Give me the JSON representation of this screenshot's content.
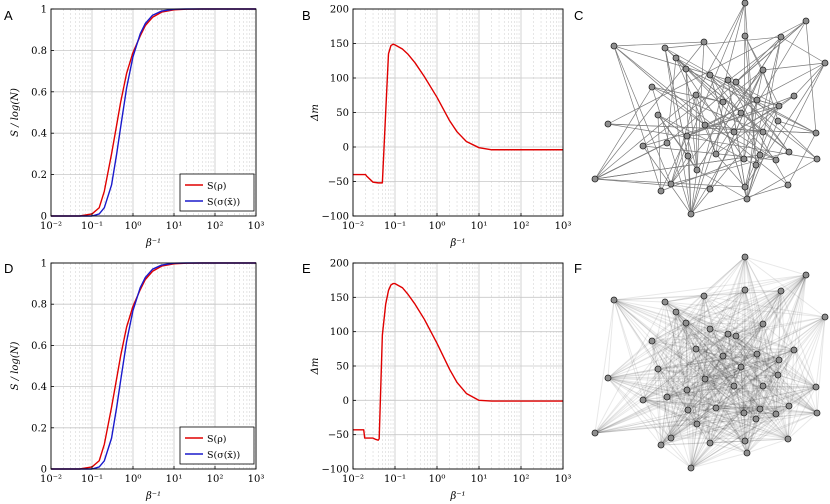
{
  "colors": {
    "red": "#e00000",
    "blue": "#1a1acc",
    "edge_sparse": "#7a7a7a",
    "edge_dense": "#000000"
  },
  "panels": {
    "a": "A",
    "b": "B",
    "c": "C",
    "d": "D",
    "e": "E",
    "f": "F"
  },
  "chart_data": [
    {
      "id": "A",
      "type": "line",
      "xscale": "log",
      "xlim": [
        0.01,
        1000
      ],
      "ylim": [
        0,
        1
      ],
      "xlabel": "β⁻¹",
      "ylabel": "S / log(N)",
      "xticks": [
        "10⁻²",
        "10⁻¹",
        "10⁰",
        "10¹",
        "10²",
        "10³"
      ],
      "yticks": [
        "0",
        "0.2",
        "0.4",
        "0.6",
        "0.8",
        "1"
      ],
      "legend_position": "bottom-right",
      "series": [
        {
          "name": "S(ρ)",
          "color": "red",
          "x": [
            0.01,
            0.05,
            0.1,
            0.15,
            0.2,
            0.3,
            0.4,
            0.5,
            0.7,
            1,
            1.5,
            2,
            3,
            5,
            10,
            20,
            50,
            100,
            1000
          ],
          "y": [
            0,
            0,
            0.01,
            0.04,
            0.12,
            0.3,
            0.44,
            0.55,
            0.69,
            0.79,
            0.87,
            0.92,
            0.96,
            0.985,
            0.996,
            0.999,
            1,
            1,
            1
          ]
        },
        {
          "name": "S(σ(x̄))",
          "color": "blue",
          "x": [
            0.01,
            0.05,
            0.1,
            0.15,
            0.2,
            0.3,
            0.4,
            0.5,
            0.7,
            1,
            1.5,
            2,
            3,
            5,
            10,
            20,
            50,
            100,
            1000
          ],
          "y": [
            0,
            0,
            0,
            0.01,
            0.04,
            0.15,
            0.3,
            0.43,
            0.62,
            0.77,
            0.88,
            0.93,
            0.97,
            0.99,
            0.999,
            1,
            1,
            1,
            1
          ]
        }
      ]
    },
    {
      "id": "B",
      "type": "line",
      "xscale": "log",
      "xlim": [
        0.01,
        1000
      ],
      "ylim": [
        -100,
        200
      ],
      "xlabel": "β⁻¹",
      "ylabel": "Δm",
      "xticks": [
        "10⁻²",
        "10⁻¹",
        "10⁰",
        "10¹",
        "10²",
        "10³"
      ],
      "yticks": [
        "−100",
        "−50",
        "0",
        "50",
        "100",
        "150",
        "200"
      ],
      "series": [
        {
          "color": "red",
          "x": [
            0.01,
            0.02,
            0.021,
            0.03,
            0.04,
            0.045,
            0.05,
            0.06,
            0.07,
            0.08,
            0.09,
            0.1,
            0.15,
            0.2,
            0.3,
            0.5,
            1,
            2,
            3,
            5,
            10,
            20,
            50,
            100,
            1000
          ],
          "y": [
            -40,
            -40,
            -42,
            -51,
            -52,
            -52,
            -52,
            50,
            135,
            147,
            149,
            148,
            142,
            135,
            122,
            102,
            72,
            38,
            22,
            8,
            -1,
            -4,
            -4,
            -4,
            -4
          ]
        }
      ]
    },
    {
      "id": "D",
      "type": "line",
      "xscale": "log",
      "xlim": [
        0.01,
        1000
      ],
      "ylim": [
        0,
        1
      ],
      "xlabel": "β⁻¹",
      "ylabel": "S / log(N)",
      "xticks": [
        "10⁻²",
        "10⁻¹",
        "10⁰",
        "10¹",
        "10²",
        "10³"
      ],
      "yticks": [
        "0",
        "0.2",
        "0.4",
        "0.6",
        "0.8",
        "1"
      ],
      "legend_position": "bottom-right",
      "series": [
        {
          "name": "S(ρ)",
          "color": "red",
          "x": [
            0.01,
            0.05,
            0.1,
            0.15,
            0.2,
            0.3,
            0.4,
            0.5,
            0.7,
            1,
            1.5,
            2,
            3,
            5,
            10,
            20,
            50,
            100,
            1000
          ],
          "y": [
            0,
            0,
            0.01,
            0.04,
            0.12,
            0.3,
            0.44,
            0.55,
            0.69,
            0.79,
            0.87,
            0.92,
            0.96,
            0.985,
            0.996,
            0.999,
            1,
            1,
            1
          ]
        },
        {
          "name": "S(σ(x̄))",
          "color": "blue",
          "x": [
            0.01,
            0.05,
            0.1,
            0.15,
            0.2,
            0.3,
            0.4,
            0.5,
            0.7,
            1,
            1.5,
            2,
            3,
            5,
            10,
            20,
            50,
            100,
            1000
          ],
          "y": [
            0,
            0,
            0,
            0.01,
            0.04,
            0.15,
            0.3,
            0.43,
            0.62,
            0.77,
            0.88,
            0.93,
            0.97,
            0.99,
            0.999,
            1,
            1,
            1,
            1
          ]
        }
      ]
    },
    {
      "id": "E",
      "type": "line",
      "xscale": "log",
      "xlim": [
        0.01,
        1000
      ],
      "ylim": [
        -100,
        200
      ],
      "xlabel": "β⁻¹",
      "ylabel": "Δm",
      "xticks": [
        "10⁻²",
        "10⁻¹",
        "10⁰",
        "10¹",
        "10²",
        "10³"
      ],
      "yticks": [
        "−100",
        "−50",
        "0",
        "50",
        "100",
        "150",
        "200"
      ],
      "series": [
        {
          "color": "red",
          "x": [
            0.01,
            0.018,
            0.019,
            0.03,
            0.035,
            0.04,
            0.042,
            0.05,
            0.06,
            0.07,
            0.08,
            0.09,
            0.1,
            0.15,
            0.2,
            0.3,
            0.5,
            1,
            2,
            3,
            5,
            10,
            20,
            50,
            100,
            1000
          ],
          "y": [
            -43,
            -43,
            -55,
            -55,
            -57,
            -58,
            -56,
            95,
            140,
            160,
            168,
            170,
            170,
            164,
            155,
            140,
            118,
            83,
            45,
            26,
            10,
            0,
            -1,
            -1,
            -1,
            -1
          ]
        }
      ]
    }
  ]
}
